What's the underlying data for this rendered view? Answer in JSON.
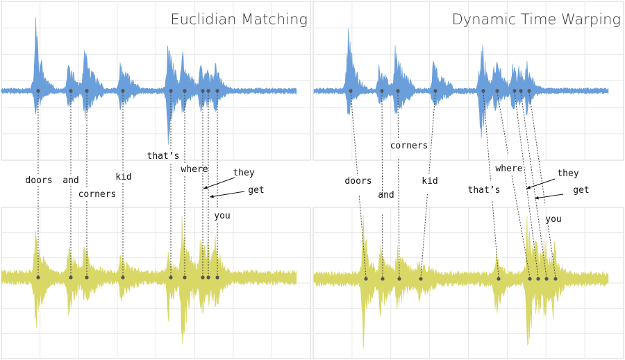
{
  "colors": {
    "top_wave": "#6a9fdb",
    "bottom_wave": "#d9d766",
    "grid": "#e6e6e6",
    "panel_border": "#d6d6d6",
    "dot": "#555555",
    "connector": "#444444"
  },
  "panels": [
    {
      "title": "Euclidian Matching",
      "words": [
        {
          "text": "doors"
        },
        {
          "text": "and"
        },
        {
          "text": "corners"
        },
        {
          "text": "kid"
        },
        {
          "text": "that’s"
        },
        {
          "text": "where"
        },
        {
          "text": "they"
        },
        {
          "text": "get"
        },
        {
          "text": "you"
        }
      ]
    },
    {
      "title": "Dynamic Time Warping",
      "words": [
        {
          "text": "doors"
        },
        {
          "text": "and"
        },
        {
          "text": "corners"
        },
        {
          "text": "kid"
        },
        {
          "text": "that’s"
        },
        {
          "text": "where"
        },
        {
          "text": "they"
        },
        {
          "text": "get"
        },
        {
          "text": "you"
        }
      ]
    }
  ]
}
